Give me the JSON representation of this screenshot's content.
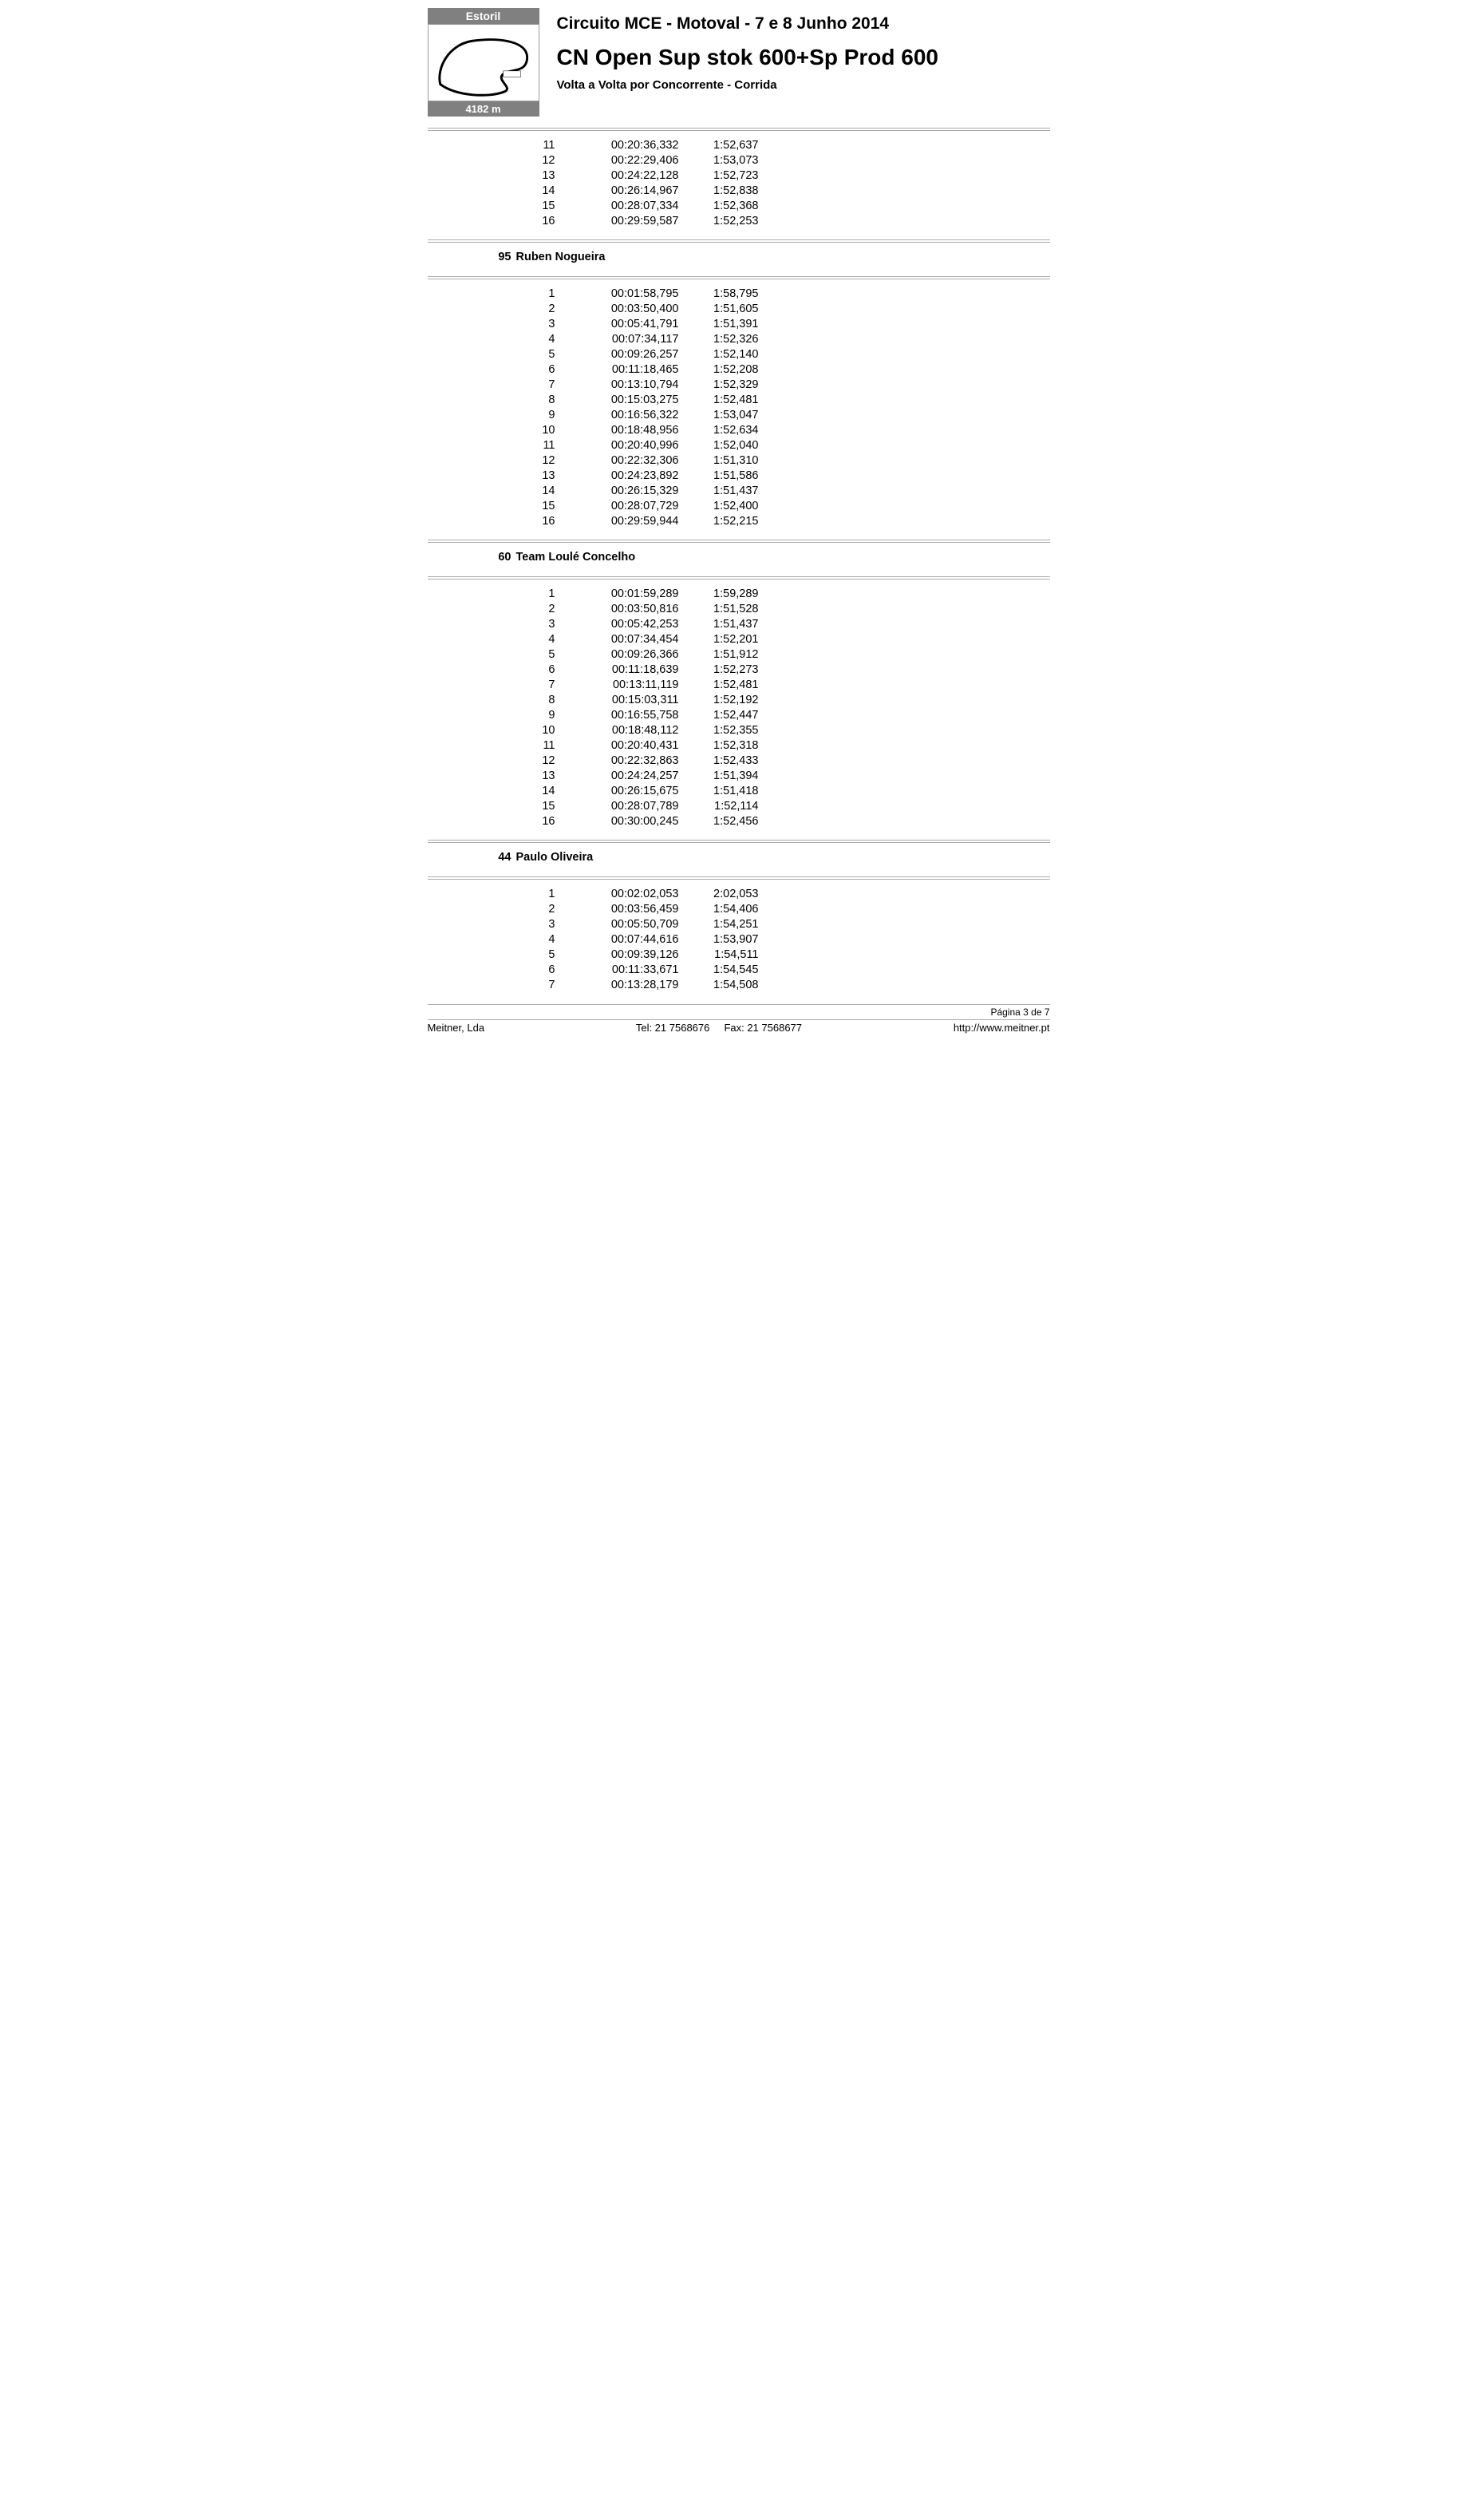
{
  "header": {
    "track_name": "Estoril",
    "track_length": "4182 m",
    "event_title": "Circuito MCE - Motoval - 7 e 8 Junho 2014",
    "class_title": "CN Open Sup stok 600+Sp Prod 600",
    "subtitle": "Volta a Volta por Concorrente  -  Corrida"
  },
  "sections": [
    {
      "rider_num": "",
      "rider_name": "",
      "laps": [
        {
          "n": "11",
          "e": "00:20:36,332",
          "t": "1:52,637"
        },
        {
          "n": "12",
          "e": "00:22:29,406",
          "t": "1:53,073"
        },
        {
          "n": "13",
          "e": "00:24:22,128",
          "t": "1:52,723"
        },
        {
          "n": "14",
          "e": "00:26:14,967",
          "t": "1:52,838"
        },
        {
          "n": "15",
          "e": "00:28:07,334",
          "t": "1:52,368"
        },
        {
          "n": "16",
          "e": "00:29:59,587",
          "t": "1:52,253"
        }
      ]
    },
    {
      "rider_num": "95",
      "rider_name": "Ruben Nogueira",
      "laps": [
        {
          "n": "1",
          "e": "00:01:58,795",
          "t": "1:58,795"
        },
        {
          "n": "2",
          "e": "00:03:50,400",
          "t": "1:51,605"
        },
        {
          "n": "3",
          "e": "00:05:41,791",
          "t": "1:51,391"
        },
        {
          "n": "4",
          "e": "00:07:34,117",
          "t": "1:52,326"
        },
        {
          "n": "5",
          "e": "00:09:26,257",
          "t": "1:52,140"
        },
        {
          "n": "6",
          "e": "00:11:18,465",
          "t": "1:52,208"
        },
        {
          "n": "7",
          "e": "00:13:10,794",
          "t": "1:52,329"
        },
        {
          "n": "8",
          "e": "00:15:03,275",
          "t": "1:52,481"
        },
        {
          "n": "9",
          "e": "00:16:56,322",
          "t": "1:53,047"
        },
        {
          "n": "10",
          "e": "00:18:48,956",
          "t": "1:52,634"
        },
        {
          "n": "11",
          "e": "00:20:40,996",
          "t": "1:52,040"
        },
        {
          "n": "12",
          "e": "00:22:32,306",
          "t": "1:51,310"
        },
        {
          "n": "13",
          "e": "00:24:23,892",
          "t": "1:51,586"
        },
        {
          "n": "14",
          "e": "00:26:15,329",
          "t": "1:51,437"
        },
        {
          "n": "15",
          "e": "00:28:07,729",
          "t": "1:52,400"
        },
        {
          "n": "16",
          "e": "00:29:59,944",
          "t": "1:52,215"
        }
      ]
    },
    {
      "rider_num": "60",
      "rider_name": "Team Loulé Concelho",
      "laps": [
        {
          "n": "1",
          "e": "00:01:59,289",
          "t": "1:59,289"
        },
        {
          "n": "2",
          "e": "00:03:50,816",
          "t": "1:51,528"
        },
        {
          "n": "3",
          "e": "00:05:42,253",
          "t": "1:51,437"
        },
        {
          "n": "4",
          "e": "00:07:34,454",
          "t": "1:52,201"
        },
        {
          "n": "5",
          "e": "00:09:26,366",
          "t": "1:51,912"
        },
        {
          "n": "6",
          "e": "00:11:18,639",
          "t": "1:52,273"
        },
        {
          "n": "7",
          "e": "00:13:11,119",
          "t": "1:52,481"
        },
        {
          "n": "8",
          "e": "00:15:03,311",
          "t": "1:52,192"
        },
        {
          "n": "9",
          "e": "00:16:55,758",
          "t": "1:52,447"
        },
        {
          "n": "10",
          "e": "00:18:48,112",
          "t": "1:52,355"
        },
        {
          "n": "11",
          "e": "00:20:40,431",
          "t": "1:52,318"
        },
        {
          "n": "12",
          "e": "00:22:32,863",
          "t": "1:52,433"
        },
        {
          "n": "13",
          "e": "00:24:24,257",
          "t": "1:51,394"
        },
        {
          "n": "14",
          "e": "00:26:15,675",
          "t": "1:51,418"
        },
        {
          "n": "15",
          "e": "00:28:07,789",
          "t": "1:52,114"
        },
        {
          "n": "16",
          "e": "00:30:00,245",
          "t": "1:52,456"
        }
      ]
    },
    {
      "rider_num": "44",
      "rider_name": "Paulo Oliveira",
      "laps": [
        {
          "n": "1",
          "e": "00:02:02,053",
          "t": "2:02,053"
        },
        {
          "n": "2",
          "e": "00:03:56,459",
          "t": "1:54,406"
        },
        {
          "n": "3",
          "e": "00:05:50,709",
          "t": "1:54,251"
        },
        {
          "n": "4",
          "e": "00:07:44,616",
          "t": "1:53,907"
        },
        {
          "n": "5",
          "e": "00:09:39,126",
          "t": "1:54,511"
        },
        {
          "n": "6",
          "e": "00:11:33,671",
          "t": "1:54,545"
        },
        {
          "n": "7",
          "e": "00:13:28,179",
          "t": "1:54,508"
        }
      ]
    }
  ],
  "footer": {
    "page_label": "Página 3 de 7",
    "company": "Meitner, Lda",
    "tel": "Tel: 21 7568676",
    "fax": "Fax: 21 7568677",
    "url": "http://www.meitner.pt"
  }
}
